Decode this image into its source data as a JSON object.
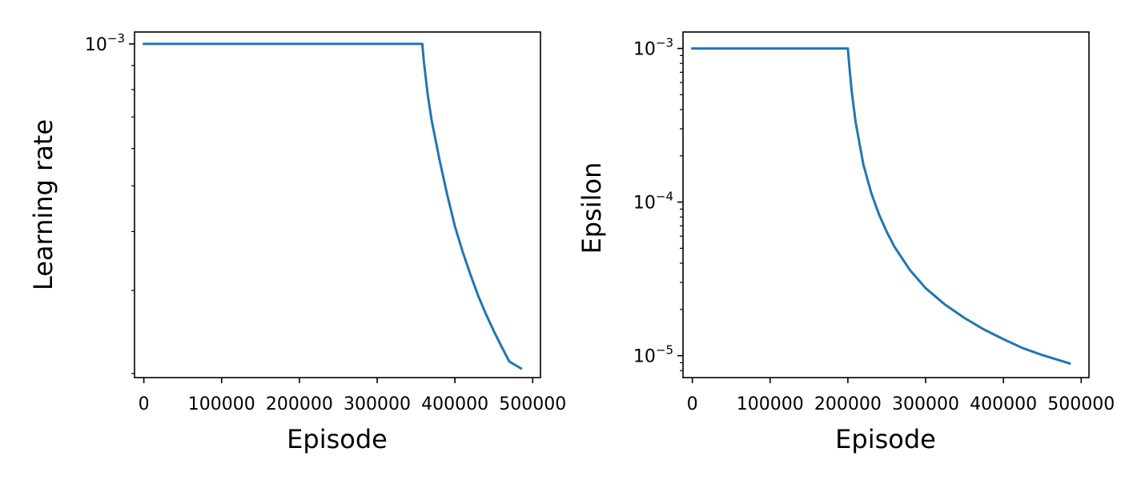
{
  "chart_data": [
    {
      "type": "line",
      "xlabel": "Episode",
      "ylabel": "Learning rate",
      "yscale": "log",
      "xlim": [
        -12000,
        510000
      ],
      "ylim": [
        0.000196,
        0.00106
      ],
      "x_ticks": [
        0,
        100000,
        200000,
        300000,
        400000,
        500000
      ],
      "x_tick_labels": [
        "0",
        "100000",
        "200000",
        "300000",
        "400000",
        "500000"
      ],
      "y_major_ticks": [
        {
          "value": 0.001,
          "base": "10",
          "exponent": "−3"
        }
      ],
      "y_minor_ticks": [
        0.0002,
        0.0003,
        0.0004,
        0.0005,
        0.0006,
        0.0007,
        0.0008,
        0.0009
      ],
      "grid": false,
      "color": "#1f77b4",
      "series": [
        {
          "x": [
            0,
            358000,
            360000,
            365000,
            370000,
            380000,
            390000,
            400000,
            410000,
            420000,
            430000,
            440000,
            450000,
            460000,
            470000,
            485000
          ],
          "values": [
            0.001,
            0.001,
            0.00092,
            0.00078,
            0.00069,
            0.00057,
            0.00048,
            0.00041,
            0.000362,
            0.000324,
            0.000292,
            0.000267,
            0.000246,
            0.000228,
            0.000212,
            0.000205
          ]
        }
      ]
    },
    {
      "type": "line",
      "xlabel": "Episode",
      "ylabel": "Epsilon",
      "yscale": "log",
      "xlim": [
        -12000,
        510000
      ],
      "ylim": [
        7.2e-06,
        0.00128
      ],
      "x_ticks": [
        0,
        100000,
        200000,
        300000,
        400000,
        500000
      ],
      "x_tick_labels": [
        "0",
        "100000",
        "200000",
        "300000",
        "400000",
        "500000"
      ],
      "y_major_ticks": [
        {
          "value": 0.001,
          "base": "10",
          "exponent": "−3"
        },
        {
          "value": 0.0001,
          "base": "10",
          "exponent": "−4"
        },
        {
          "value": 1e-05,
          "base": "10",
          "exponent": "−5"
        }
      ],
      "y_minor_ticks": [
        8e-06,
        9e-06,
        2e-05,
        3e-05,
        4e-05,
        5e-05,
        6e-05,
        7e-05,
        8e-05,
        9e-05,
        0.0002,
        0.0003,
        0.0004,
        0.0005,
        0.0006,
        0.0007,
        0.0008,
        0.0009
      ],
      "grid": false,
      "color": "#1f77b4",
      "series": [
        {
          "x": [
            0,
            200000,
            202000,
            205000,
            210000,
            220000,
            230000,
            240000,
            250000,
            260000,
            280000,
            300000,
            325000,
            350000,
            375000,
            400000,
            425000,
            450000,
            485000
          ],
          "values": [
            0.001,
            0.001,
            0.00075,
            0.00052,
            0.00033,
            0.000175,
            0.000115,
            8.3e-05,
            6.4e-05,
            5.1e-05,
            3.6e-05,
            2.75e-05,
            2.15e-05,
            1.76e-05,
            1.48e-05,
            1.28e-05,
            1.12e-05,
            1.01e-05,
            8.9e-06
          ]
        }
      ]
    }
  ]
}
